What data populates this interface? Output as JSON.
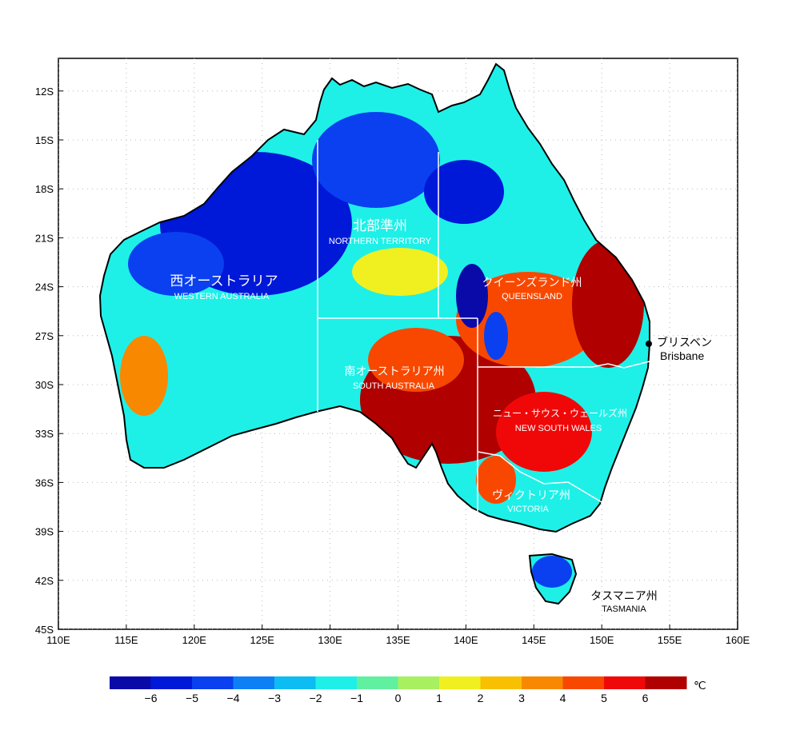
{
  "map": {
    "lon_ticks": [
      "110E",
      "115E",
      "120E",
      "125E",
      "130E",
      "135E",
      "140E",
      "145E",
      "150E",
      "155E",
      "160E"
    ],
    "lat_ticks": [
      "12S",
      "15S",
      "18S",
      "21S",
      "24S",
      "27S",
      "30S",
      "33S",
      "36S",
      "39S",
      "42S",
      "45S"
    ],
    "lon_range": [
      110,
      160
    ],
    "lat_range": [
      -10,
      -45
    ],
    "grid": "dotted"
  },
  "regions": [
    {
      "id": "wa",
      "jp": "西オーストラリア",
      "en": "WESTERN AUSTRALIA"
    },
    {
      "id": "nt",
      "jp": "北部準州",
      "en": "NORTHERN TERRITORY"
    },
    {
      "id": "qld",
      "jp": "クイーンズランド州",
      "en": "QUEENSLAND"
    },
    {
      "id": "sa",
      "jp": "南オーストラリア州",
      "en": "SOUTH AUSTRALIA"
    },
    {
      "id": "nsw",
      "jp": "ニュー・サウス・ウェールズ州",
      "en": "NEW SOUTH WALES"
    },
    {
      "id": "vic",
      "jp": "ヴィクトリア州",
      "en": "VICTORIA"
    },
    {
      "id": "tas",
      "jp": "タスマニア州",
      "en": "TASMANIA"
    }
  ],
  "city": {
    "jp": "ブリスベン",
    "en": "Brisbane"
  },
  "colorbar": {
    "unit": "℃",
    "colors": [
      "#0a0aa8",
      "#0018d8",
      "#0a40f0",
      "#0e80f6",
      "#0cbcf2",
      "#1ef0e8",
      "#60f0a0",
      "#a8f060",
      "#f0f020",
      "#f8c000",
      "#f88800",
      "#f84800",
      "#f00808",
      "#b00000"
    ],
    "labels": [
      "−6",
      "−5",
      "−4",
      "−3",
      "−2",
      "−1",
      "0",
      "1",
      "2",
      "3",
      "4",
      "5",
      "6"
    ]
  }
}
